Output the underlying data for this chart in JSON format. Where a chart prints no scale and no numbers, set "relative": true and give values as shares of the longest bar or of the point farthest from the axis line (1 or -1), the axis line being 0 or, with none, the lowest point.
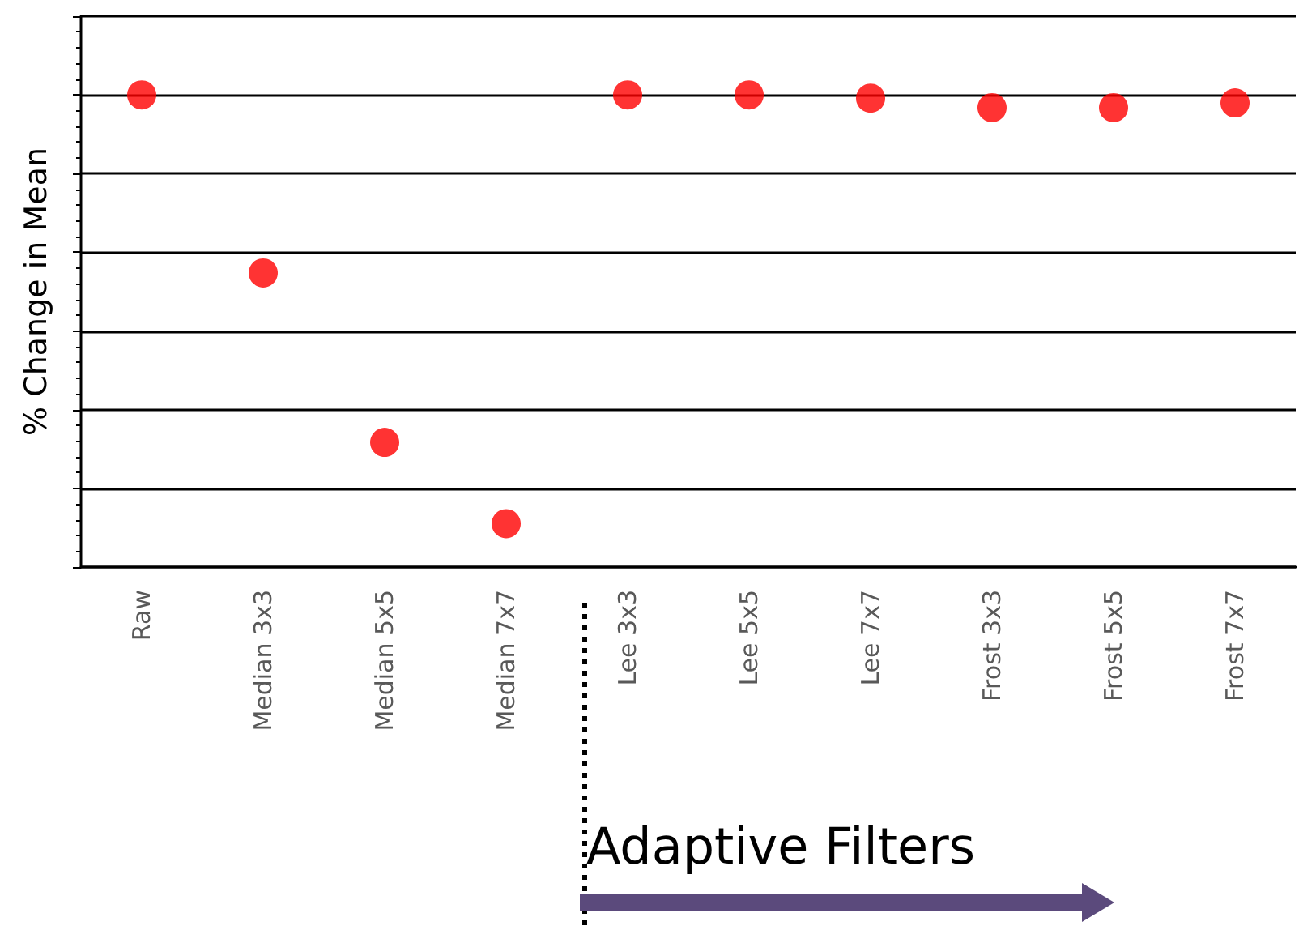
{
  "chart_data": {
    "type": "scatter",
    "relative": true,
    "ylabel": "% Change in Mean",
    "categories": [
      "Raw",
      "Median 3x3",
      "Median 5x5",
      "Median 7x7",
      "Lee 3x3",
      "Lee 5x5",
      "Lee 7x7",
      "Frost 3x3",
      "Frost 5x5",
      "Frost 7x7"
    ],
    "values": [
      1,
      0.623,
      0.264,
      0.092,
      1,
      1,
      0.993,
      0.973,
      0.973,
      0.983
    ],
    "color": "#ff0000",
    "marker": "circle",
    "grid": "y",
    "annotations": [
      "Adaptive Filters"
    ]
  }
}
